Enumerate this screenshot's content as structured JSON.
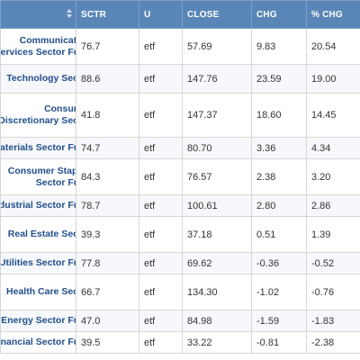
{
  "columns": [
    {
      "label": ""
    },
    {
      "label": "SCTR"
    },
    {
      "label": "U"
    },
    {
      "label": "CLOSE"
    },
    {
      "label": "CHG"
    },
    {
      "label": "% CHG"
    }
  ],
  "rows": [
    {
      "name_lines": [
        "Communication",
        "Services Sector Fund"
      ],
      "sctr": "76.7",
      "u": "etf",
      "close": "57.69",
      "chg": "9.83",
      "pct": "20.54"
    },
    {
      "name_lines": [
        "Technology Sector"
      ],
      "sctr": "88.6",
      "u": "etf",
      "close": "147.76",
      "chg": "23.59",
      "pct": "19.00"
    },
    {
      "name_lines": [
        "Consumer",
        "Discretionary Sector"
      ],
      "sctr": "41.8",
      "u": "etf",
      "close": "147.37",
      "chg": "18.60",
      "pct": "14.45"
    },
    {
      "name_lines": [
        "Materials Sector Fund"
      ],
      "sctr": "74.7",
      "u": "etf",
      "close": "80.70",
      "chg": "3.36",
      "pct": "4.34"
    },
    {
      "name_lines": [
        "Consumer Staples",
        "Sector Fund"
      ],
      "sctr": "84.3",
      "u": "etf",
      "close": "76.57",
      "chg": "2.38",
      "pct": "3.20"
    },
    {
      "name_lines": [
        "Industrial Sector Fund"
      ],
      "sctr": "78.7",
      "u": "etf",
      "close": "100.61",
      "chg": "2.80",
      "pct": "2.86"
    },
    {
      "name_lines": [
        "Real Estate Sector"
      ],
      "sctr": "39.3",
      "u": "etf",
      "close": "37.18",
      "chg": "0.51",
      "pct": "1.39"
    },
    {
      "name_lines": [
        "Utilities Sector Fund"
      ],
      "sctr": "77.8",
      "u": "etf",
      "close": "69.62",
      "chg": "-0.36",
      "pct": "-0.52"
    },
    {
      "name_lines": [
        "Health Care Sector"
      ],
      "sctr": "66.7",
      "u": "etf",
      "close": "134.30",
      "chg": "-1.02",
      "pct": "-0.76"
    },
    {
      "name_lines": [
        "Energy Sector Fund"
      ],
      "sctr": "47.0",
      "u": "etf",
      "close": "84.98",
      "chg": "-1.59",
      "pct": "-1.83"
    },
    {
      "name_lines": [
        "Financial Sector Fund"
      ],
      "sctr": "39.5",
      "u": "etf",
      "close": "33.22",
      "chg": "-0.81",
      "pct": "-2.38"
    }
  ],
  "colors": {
    "header_bg": "#5a86b7",
    "link": "#1f4e8c"
  }
}
